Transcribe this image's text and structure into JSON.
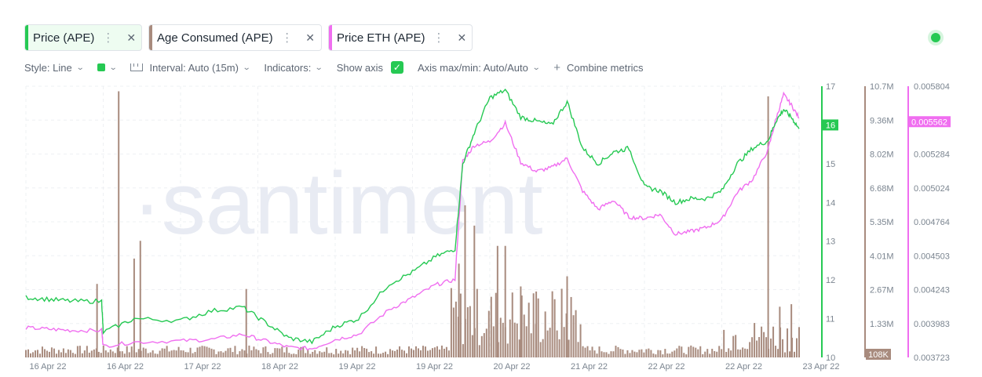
{
  "metrics": [
    {
      "label": "Price (APE)",
      "color": "#26c953"
    },
    {
      "label": "Age Consumed (APE)",
      "color": "#a88b7e"
    },
    {
      "label": "Price ETH (APE)",
      "color": "#f06ef0"
    }
  ],
  "toolbar": {
    "style": "Style: Line",
    "interval": "Interval: Auto (15m)",
    "indicators": "Indicators:",
    "show_axis": "Show axis",
    "axis_maxmin": "Axis max/min: Auto/Auto",
    "combine": "Combine metrics"
  },
  "watermark": "·santiment",
  "chart_data": {
    "type": "line",
    "x_ticks": [
      "16 Apr 22",
      "16 Apr 22",
      "17 Apr 22",
      "18 Apr 22",
      "19 Apr 22",
      "19 Apr 22",
      "20 Apr 22",
      "21 Apr 22",
      "22 Apr 22",
      "22 Apr 22",
      "23 Apr 22"
    ],
    "axes": {
      "price": {
        "ticks": [
          "17",
          "16",
          "15",
          "14",
          "13",
          "12",
          "11",
          "10"
        ],
        "range": [
          10,
          17
        ],
        "current": "16",
        "color": "#26c953"
      },
      "age_consumed": {
        "ticks": [
          "10.7M",
          "9.36M",
          "8.02M",
          "6.68M",
          "5.35M",
          "4.01M",
          "2.67M",
          "1.33M"
        ],
        "range": [
          0,
          10700000
        ],
        "current": "108K",
        "color": "#a88b7e"
      },
      "price_eth": {
        "ticks": [
          "0.005804",
          "0.005544",
          "0.005284",
          "0.005024",
          "0.004764",
          "0.004503",
          "0.004243",
          "0.003983",
          "0.003723"
        ],
        "range": [
          0.003723,
          0.005804
        ],
        "current": "0.005562",
        "color": "#f06ef0"
      }
    },
    "series": [
      {
        "name": "Price (APE)",
        "color": "#26c953",
        "x": [
          0,
          0.03,
          0.06,
          0.098,
          0.1,
          0.14,
          0.2,
          0.24,
          0.28,
          0.31,
          0.34,
          0.37,
          0.4,
          0.43,
          0.47,
          0.5,
          0.53,
          0.555,
          0.565,
          0.58,
          0.6,
          0.62,
          0.64,
          0.66,
          0.68,
          0.7,
          0.72,
          0.74,
          0.76,
          0.78,
          0.8,
          0.82,
          0.84,
          0.86,
          0.88,
          0.9,
          0.92,
          0.94,
          0.96,
          0.97,
          0.98,
          0.99,
          1.0
        ],
        "y": [
          11.55,
          11.5,
          11.45,
          11.45,
          10.65,
          11.0,
          10.95,
          11.2,
          11.3,
          10.9,
          10.5,
          10.4,
          10.8,
          11.0,
          11.9,
          12.2,
          12.6,
          12.8,
          15.0,
          15.8,
          16.7,
          16.9,
          16.2,
          16.1,
          16.0,
          16.6,
          15.4,
          15.0,
          15.3,
          15.4,
          14.4,
          14.3,
          14.0,
          14.1,
          14.1,
          14.3,
          15.0,
          15.4,
          15.6,
          16.1,
          16.4,
          16.2,
          15.9
        ]
      },
      {
        "name": "Price ETH (APE)",
        "color": "#f06ef0",
        "x": [
          0,
          0.03,
          0.06,
          0.098,
          0.1,
          0.14,
          0.2,
          0.24,
          0.28,
          0.31,
          0.34,
          0.37,
          0.4,
          0.43,
          0.47,
          0.5,
          0.53,
          0.555,
          0.565,
          0.58,
          0.6,
          0.62,
          0.64,
          0.66,
          0.68,
          0.7,
          0.72,
          0.74,
          0.76,
          0.78,
          0.8,
          0.82,
          0.84,
          0.86,
          0.88,
          0.9,
          0.92,
          0.94,
          0.96,
          0.97,
          0.98,
          0.99,
          1.0
        ],
        "y": [
          0.00395,
          0.00394,
          0.00393,
          0.00393,
          0.00381,
          0.00384,
          0.00385,
          0.00386,
          0.0039,
          0.00385,
          0.0038,
          0.00379,
          0.00386,
          0.0039,
          0.00409,
          0.00418,
          0.00428,
          0.00432,
          0.00523,
          0.00535,
          0.00538,
          0.00552,
          0.00522,
          0.00515,
          0.00518,
          0.00525,
          0.005,
          0.00486,
          0.00493,
          0.0048,
          0.00479,
          0.00482,
          0.00467,
          0.00469,
          0.00472,
          0.00478,
          0.00499,
          0.00509,
          0.00532,
          0.00555,
          0.00574,
          0.00566,
          0.00556
        ]
      },
      {
        "name": "Age Consumed (APE)",
        "color": "#a88b7e",
        "type": "bar",
        "spikes": [
          {
            "x": 0.092,
            "v": 2900000.0
          },
          {
            "x": 0.12,
            "v": 10500000.0
          },
          {
            "x": 0.14,
            "v": 3900000.0
          },
          {
            "x": 0.148,
            "v": 4600000.0
          },
          {
            "x": 0.285,
            "v": 2700000.0
          },
          {
            "x": 0.56,
            "v": 3700000.0
          },
          {
            "x": 0.568,
            "v": 6000000.0
          },
          {
            "x": 0.58,
            "v": 5200000.0
          },
          {
            "x": 0.61,
            "v": 4400000.0
          },
          {
            "x": 0.62,
            "v": 4400000.0
          },
          {
            "x": 0.64,
            "v": 2800000.0
          },
          {
            "x": 0.66,
            "v": 2600000.0
          },
          {
            "x": 0.7,
            "v": 3200000.0
          },
          {
            "x": 0.96,
            "v": 10300000.0
          },
          {
            "x": 0.975,
            "v": 2000000.0
          },
          {
            "x": 0.99,
            "v": 2100000.0
          }
        ]
      }
    ]
  }
}
